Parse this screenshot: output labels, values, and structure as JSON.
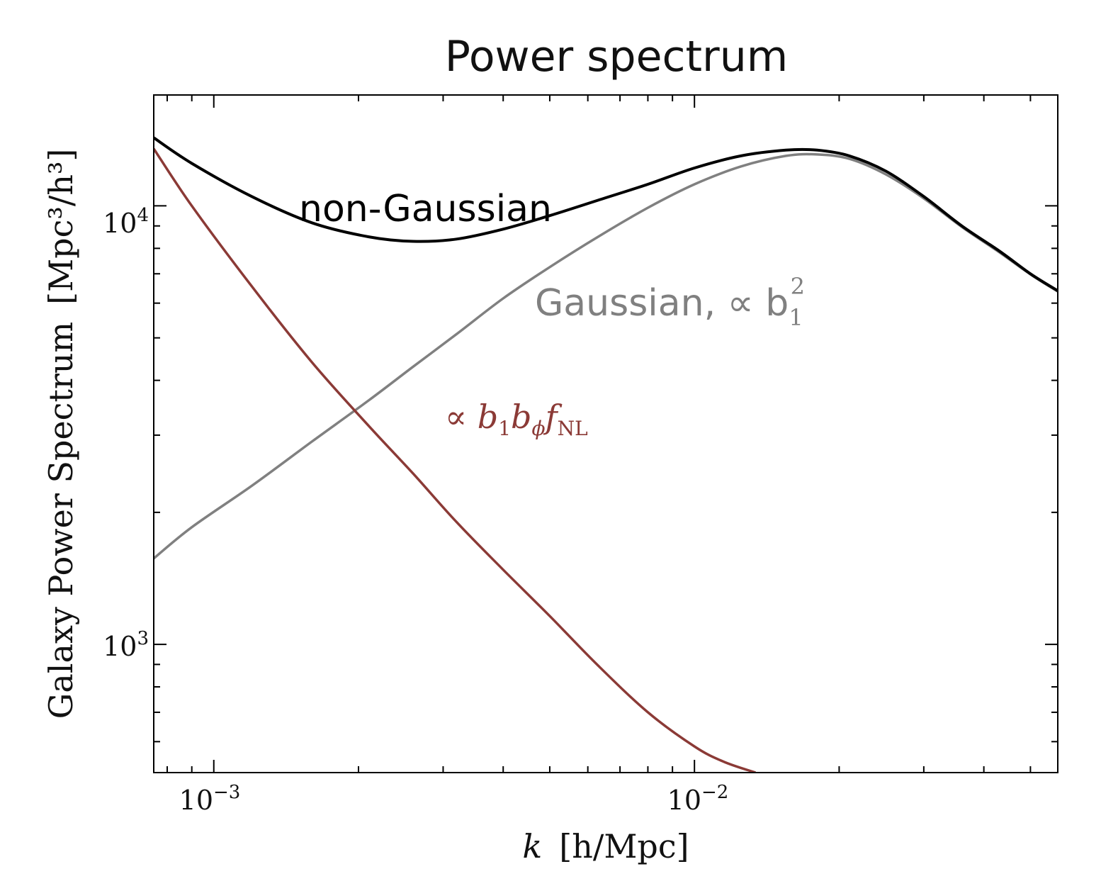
{
  "chart_data": {
    "type": "line",
    "title": "Power spectrum",
    "xlabel": {
      "var": "k",
      "unit": "[h/Mpc]"
    },
    "ylabel": {
      "text": "Galaxy Power Spectrum",
      "unit": "[Mpc³/h³]"
    },
    "x_scale": "log",
    "y_scale": "log",
    "xlim": [
      0.00075,
      0.057
    ],
    "ylim": [
      510,
      17900
    ],
    "x_tick_labels": [
      {
        "value": 0.001,
        "base": "10",
        "exp": "−3"
      },
      {
        "value": 0.01,
        "base": "10",
        "exp": "−2"
      }
    ],
    "y_tick_labels": [
      {
        "value": 1000,
        "base": "10",
        "exp": "3"
      },
      {
        "value": 10000,
        "base": "10",
        "exp": "4"
      }
    ],
    "grid": false,
    "legend": "none",
    "series": [
      {
        "name": "non-Gaussian",
        "color": "#000000",
        "x": [
          0.00075,
          0.0009,
          0.0012,
          0.0016,
          0.0021,
          0.0026,
          0.0032,
          0.004,
          0.005,
          0.0063,
          0.008,
          0.01,
          0.0125,
          0.0155,
          0.018,
          0.021,
          0.025,
          0.03,
          0.036,
          0.043,
          0.05,
          0.057
        ],
        "y": [
          14300,
          12500,
          10500,
          9150,
          8500,
          8300,
          8400,
          8850,
          9500,
          10300,
          11200,
          12200,
          13000,
          13400,
          13400,
          13000,
          12000,
          10500,
          9000,
          7900,
          7000,
          6400
        ]
      },
      {
        "name": "Gaussian, ∝ b₁²",
        "color": "#808080",
        "x": [
          0.00075,
          0.0009,
          0.0012,
          0.0016,
          0.0021,
          0.0026,
          0.0032,
          0.004,
          0.005,
          0.0063,
          0.008,
          0.01,
          0.0125,
          0.0155,
          0.018,
          0.021,
          0.025,
          0.03,
          0.036,
          0.043,
          0.05,
          0.057
        ],
        "y": [
          1570,
          1850,
          2300,
          2900,
          3600,
          4300,
          5100,
          6150,
          7250,
          8500,
          9900,
          11200,
          12300,
          13000,
          13100,
          12800,
          11800,
          10400,
          8950,
          7850,
          6980,
          6380
        ]
      },
      {
        "name": "∝ b₁b_φ f_NL",
        "color": "#8b3a36",
        "x": [
          0.00075,
          0.0009,
          0.0012,
          0.0016,
          0.0021,
          0.0026,
          0.0032,
          0.004,
          0.005,
          0.0063,
          0.008,
          0.01,
          0.0115,
          0.0134
        ],
        "y": [
          13500,
          10000,
          6550,
          4400,
          3150,
          2450,
          1900,
          1480,
          1160,
          895,
          700,
          585,
          540,
          510
        ]
      }
    ],
    "annotations": [
      {
        "series": 0,
        "text": "non-Gaussian",
        "color": "#000000"
      },
      {
        "series": 1,
        "main": "Gaussian, ∝ b",
        "sub": "1",
        "sup": "2",
        "color": "#808080"
      },
      {
        "series": 2,
        "prefix": "∝ ",
        "b": "b",
        "sub1": "1",
        "phi": "ϕ",
        "f": "f",
        "subNL": "NL",
        "color": "#8b3a36"
      }
    ]
  }
}
